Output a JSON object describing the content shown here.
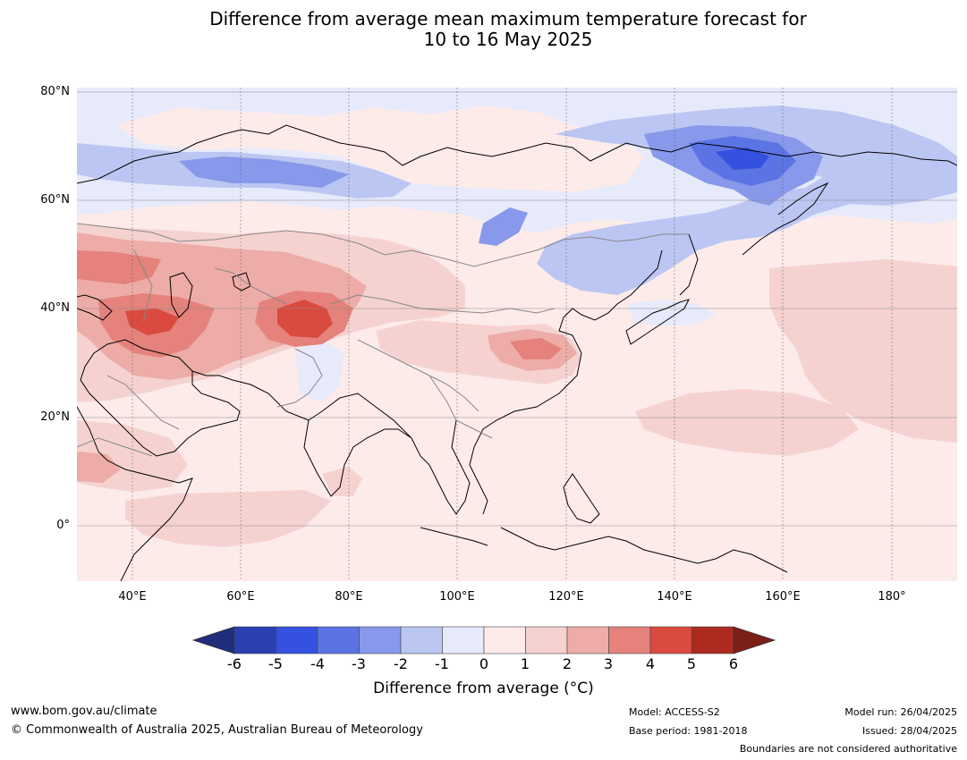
{
  "title": {
    "line1": "Difference from average mean maximum temperature forecast for",
    "line2": "10 to 16 May 2025"
  },
  "map": {
    "lat_labels": [
      "80°N",
      "60°N",
      "40°N",
      "20°N",
      "0°"
    ],
    "lon_labels": [
      "40°E",
      "60°E",
      "80°E",
      "100°E",
      "120°E",
      "140°E",
      "160°E",
      "180°"
    ],
    "extent": {
      "lon": [
        30,
        190
      ],
      "lat": [
        -10,
        80
      ]
    },
    "background_anomaly_color": "#fdebea"
  },
  "colorbar": {
    "ticks": [
      "-6",
      "-5",
      "-4",
      "-3",
      "-2",
      "-1",
      "0",
      "1",
      "2",
      "3",
      "4",
      "5",
      "6"
    ],
    "colors": [
      "#1f2d7a",
      "#2a3fb0",
      "#3452df",
      "#5b74e4",
      "#8898ea",
      "#bcc6f2",
      "#e7eafb",
      "#fdebea",
      "#f5d2d0",
      "#edaca8",
      "#e5827c",
      "#da4a3e",
      "#ac2a20",
      "#7b1f17"
    ],
    "label": "Difference from average (°C)"
  },
  "footer": {
    "website": "www.bom.gov.au/climate",
    "copyright": "© Commonwealth of Australia 2025, Australian Bureau of Meteorology",
    "model": "Model: ACCESS-S2",
    "base_period": "Base period: 1981-2018",
    "model_run": "Model run: 26/04/2025",
    "issued": "Issued: 28/04/2025",
    "disclaimer": "Boundaries are not considered authoritative"
  }
}
